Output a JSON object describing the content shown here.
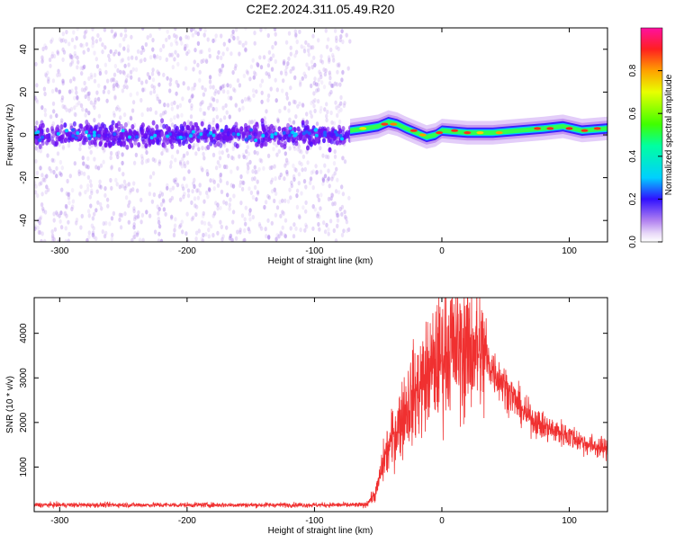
{
  "title": "C2E2.2024.311.05.49.R20",
  "chart_data": [
    {
      "type": "heatmap",
      "xlabel": "Height of straight line (km)",
      "ylabel": "Frequency (Hz)",
      "xlim": [
        -320,
        130
      ],
      "ylim": [
        -50,
        50
      ],
      "x_ticks": [
        -300,
        -200,
        -100,
        0,
        100
      ],
      "y_ticks": [
        -40,
        -20,
        0,
        20,
        40
      ],
      "noise_region_x": [
        -320,
        -72
      ],
      "signal_track": [
        {
          "x": -72,
          "y": 2
        },
        {
          "x": -60,
          "y": 3
        },
        {
          "x": -50,
          "y": 4
        },
        {
          "x": -42,
          "y": 6
        },
        {
          "x": -35,
          "y": 5
        },
        {
          "x": -28,
          "y": 3
        },
        {
          "x": -20,
          "y": 1
        },
        {
          "x": -12,
          "y": -1
        },
        {
          "x": -5,
          "y": 0
        },
        {
          "x": 0,
          "y": 2
        },
        {
          "x": 20,
          "y": 1
        },
        {
          "x": 40,
          "y": 1
        },
        {
          "x": 60,
          "y": 2
        },
        {
          "x": 80,
          "y": 3
        },
        {
          "x": 95,
          "y": 4
        },
        {
          "x": 110,
          "y": 2
        },
        {
          "x": 130,
          "y": 3
        }
      ],
      "grid": false
    },
    {
      "type": "line",
      "xlabel": "Height of straight line (km)",
      "ylabel": "SNR (10 * v/v)",
      "xlim": [
        -320,
        130
      ],
      "ylim": [
        0,
        4800
      ],
      "x_ticks": [
        -300,
        -200,
        -100,
        0,
        100
      ],
      "y_ticks": [
        1000,
        2000,
        3000,
        4000
      ],
      "series": [
        {
          "color": "#f03030",
          "envelope": [
            {
              "x": -320,
              "y": 150
            },
            {
              "x": -60,
              "y": 150
            },
            {
              "x": -52,
              "y": 400
            },
            {
              "x": -45,
              "y": 1200
            },
            {
              "x": -35,
              "y": 1900
            },
            {
              "x": -25,
              "y": 2500
            },
            {
              "x": -15,
              "y": 2900
            },
            {
              "x": -5,
              "y": 3300
            },
            {
              "x": 5,
              "y": 3700
            },
            {
              "x": 15,
              "y": 3600
            },
            {
              "x": 25,
              "y": 3700
            },
            {
              "x": 35,
              "y": 3400
            },
            {
              "x": 45,
              "y": 3000
            },
            {
              "x": 55,
              "y": 2600
            },
            {
              "x": 65,
              "y": 2200
            },
            {
              "x": 80,
              "y": 1900
            },
            {
              "x": 100,
              "y": 1700
            },
            {
              "x": 115,
              "y": 1500
            },
            {
              "x": 130,
              "y": 1400
            }
          ]
        }
      ],
      "grid": false
    }
  ],
  "colorbar": {
    "label": "Normalized spectral amplitude",
    "range": [
      0,
      1
    ],
    "ticks": [
      "0.0",
      "0.2",
      "0.4",
      "0.6",
      "0.8"
    ]
  }
}
